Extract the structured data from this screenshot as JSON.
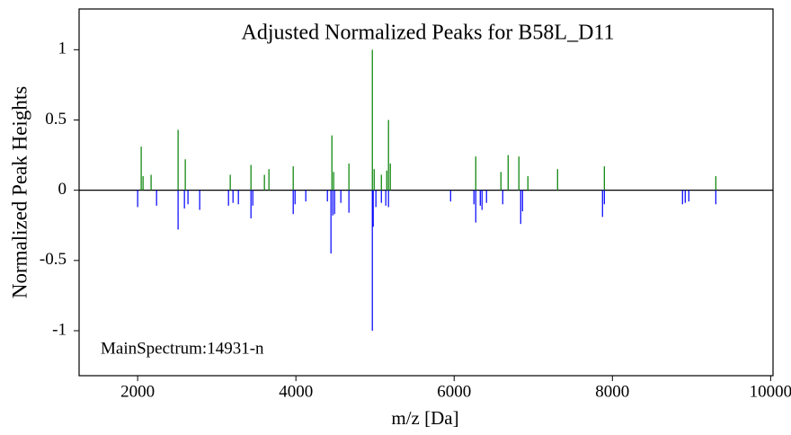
{
  "chart_data": {
    "type": "stem",
    "title": "Adjusted Normalized Peaks for B58L_D11",
    "x_label": "m/z [Da]",
    "y_label": "Normalized Peak Heights",
    "annotation": "MainSpectrum:14931-n",
    "xlim": [
      1260,
      10030
    ],
    "ylim": [
      -1.32,
      1.29
    ],
    "xticks": [
      2000,
      4000,
      6000,
      8000,
      10000
    ],
    "yticks": [
      1,
      0.5,
      0,
      -0.5,
      -1
    ],
    "series": [
      {
        "color": "#008000",
        "x": [
          2045,
          2068,
          2170,
          2511,
          2602,
          3170,
          3432,
          3602,
          3659,
          3966,
          4455,
          4477,
          4670,
          4966,
          4989,
          5080,
          5148,
          5170,
          5193,
          6273,
          6591,
          6682,
          6818,
          6932,
          7307,
          7898,
          9307
        ],
        "values": [
          0.31,
          0.1,
          0.11,
          0.43,
          0.22,
          0.11,
          0.18,
          0.11,
          0.15,
          0.17,
          0.39,
          0.13,
          0.19,
          1.0,
          0.15,
          0.11,
          0.14,
          0.5,
          0.19,
          0.24,
          0.13,
          0.25,
          0.24,
          0.1,
          0.15,
          0.17,
          0.1
        ]
      },
      {
        "color": "#0000ff",
        "x": [
          2000,
          2239,
          2511,
          2591,
          2636,
          2784,
          3148,
          3205,
          3273,
          3432,
          3455,
          3966,
          3989,
          4125,
          4398,
          4443,
          4466,
          4489,
          4568,
          4670,
          4966,
          4977,
          5011,
          5080,
          5136,
          5170,
          5955,
          6250,
          6273,
          6330,
          6352,
          6409,
          6614,
          6841,
          6864,
          7875,
          7898,
          8886,
          8920,
          8966,
          9307
        ],
        "values": [
          -0.12,
          -0.11,
          -0.28,
          -0.13,
          -0.1,
          -0.14,
          -0.11,
          -0.09,
          -0.1,
          -0.2,
          -0.11,
          -0.17,
          -0.1,
          -0.08,
          -0.08,
          -0.45,
          -0.18,
          -0.17,
          -0.09,
          -0.16,
          -1.0,
          -0.26,
          -0.12,
          -0.09,
          -0.11,
          -0.12,
          -0.08,
          -0.1,
          -0.23,
          -0.11,
          -0.14,
          -0.09,
          -0.1,
          -0.24,
          -0.15,
          -0.19,
          -0.1,
          -0.1,
          -0.09,
          -0.08,
          -0.1
        ]
      }
    ]
  }
}
